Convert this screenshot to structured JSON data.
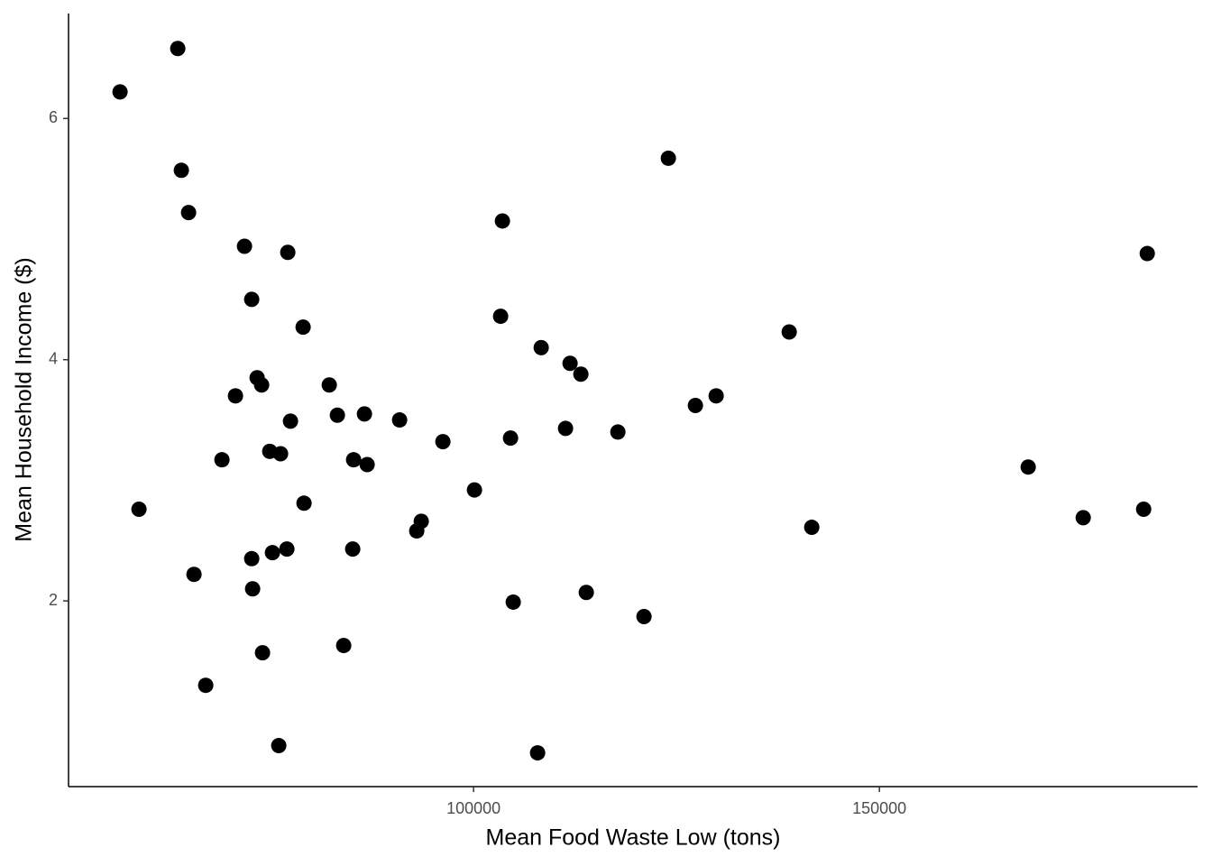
{
  "chart_data": {
    "type": "scatter",
    "x_label": "Mean Food Waste Low (tons)",
    "y_label": "Mean Household Income ($)",
    "color": "#000000",
    "xlim": [
      50100,
      189200
    ],
    "ylim": [
      0.46,
      6.87
    ],
    "xticks": [
      100000,
      150000
    ],
    "yticks": [
      2,
      4,
      6
    ],
    "x": [
      56444,
      63556,
      64000,
      64889,
      58778,
      65556,
      67000,
      69000,
      70667,
      71778,
      72667,
      73333,
      73889,
      72667,
      72778,
      74000,
      74889,
      76222,
      75222,
      77000,
      76000,
      77111,
      77444,
      79000,
      79111,
      82222,
      83222,
      84000,
      85222,
      85111,
      86556,
      86889,
      90889,
      93000,
      93556,
      96222,
      100111,
      103556,
      103333,
      104556,
      104889,
      107889,
      108333,
      111333,
      111889,
      113222,
      113889,
      117778,
      121000,
      124000,
      127333,
      129889,
      138889,
      141667,
      168333,
      175111,
      182556,
      183000
    ],
    "values": [
      6.22,
      6.58,
      5.57,
      5.22,
      2.76,
      2.22,
      1.3,
      3.17,
      3.7,
      4.94,
      4.5,
      3.85,
      3.79,
      2.35,
      2.1,
      1.57,
      3.24,
      3.22,
      2.4,
      2.43,
      0.8,
      4.89,
      3.49,
      4.27,
      2.81,
      3.79,
      3.54,
      1.63,
      3.17,
      2.43,
      3.55,
      3.13,
      3.5,
      2.58,
      2.66,
      3.32,
      2.92,
      5.15,
      4.36,
      3.35,
      1.99,
      0.74,
      4.1,
      3.43,
      3.97,
      3.88,
      2.07,
      3.4,
      1.87,
      5.67,
      3.62,
      3.7,
      4.23,
      2.61,
      3.11,
      2.69,
      2.76,
      4.88
    ]
  }
}
